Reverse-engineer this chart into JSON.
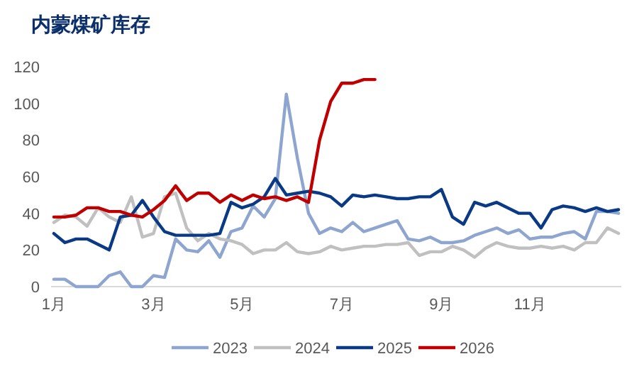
{
  "chart_data": {
    "type": "line",
    "title": "内蒙煤矿库存",
    "categories": [
      "1月",
      null,
      null,
      null,
      null,
      null,
      null,
      null,
      null,
      "3月",
      null,
      null,
      null,
      null,
      null,
      null,
      null,
      "5月",
      null,
      null,
      null,
      null,
      null,
      null,
      null,
      null,
      "7月",
      null,
      null,
      null,
      null,
      null,
      null,
      null,
      null,
      "9月",
      null,
      null,
      null,
      null,
      null,
      null,
      null,
      "11月",
      null,
      null,
      null,
      null,
      null,
      null,
      null,
      null
    ],
    "series": [
      {
        "name": "2023",
        "color": "#8ea6cf",
        "values": [
          4,
          4,
          0,
          0,
          0,
          6,
          8,
          0,
          0,
          6,
          5,
          26,
          20,
          19,
          25,
          16,
          30,
          32,
          44,
          38,
          48,
          105,
          70,
          40,
          29,
          32,
          30,
          35,
          30,
          32,
          34,
          36,
          26,
          25,
          27,
          24,
          24,
          25,
          28,
          30,
          32,
          29,
          31,
          26,
          27,
          27,
          29,
          30,
          26,
          41,
          41,
          40
        ]
      },
      {
        "name": "2024",
        "color": "#c0c0c0",
        "values": [
          35,
          39,
          38,
          33,
          43,
          38,
          35,
          49,
          27,
          29,
          49,
          51,
          32,
          25,
          29,
          26,
          25,
          23,
          18,
          20,
          20,
          24,
          19,
          18,
          19,
          22,
          20,
          21,
          22,
          22,
          23,
          23,
          24,
          17,
          19,
          19,
          22,
          20,
          16,
          21,
          24,
          22,
          21,
          21,
          22,
          21,
          22,
          20,
          24,
          24,
          32,
          29
        ]
      },
      {
        "name": "2025",
        "color": "#0a3a86",
        "values": [
          29,
          24,
          26,
          26,
          23,
          20,
          38,
          39,
          47,
          38,
          30,
          28,
          28,
          28,
          28,
          29,
          46,
          43,
          45,
          49,
          59,
          50,
          51,
          52,
          51,
          49,
          44,
          50,
          49,
          50,
          49,
          48,
          48,
          49,
          49,
          53,
          38,
          34,
          46,
          44,
          46,
          43,
          40,
          40,
          32,
          42,
          44,
          43,
          41,
          43,
          41,
          42
        ]
      },
      {
        "name": "2026",
        "color": "#c00000",
        "values": [
          38,
          38,
          39,
          43,
          43,
          41,
          41,
          39,
          38,
          42,
          47,
          55,
          47,
          51,
          51,
          46,
          50,
          47,
          50,
          48,
          49,
          47,
          49,
          46,
          80,
          101,
          111,
          111,
          113,
          113,
          null,
          null,
          null,
          null,
          null,
          null,
          null,
          null,
          null,
          null,
          null,
          null,
          null,
          null,
          null,
          null,
          null,
          null,
          null,
          null,
          null,
          null
        ]
      }
    ],
    "ylim": [
      0,
      120
    ],
    "yticks": [
      0,
      20,
      40,
      60,
      80,
      100,
      120
    ],
    "grid": false,
    "legend": "bottom",
    "line_style": "solid",
    "marker": "none"
  }
}
